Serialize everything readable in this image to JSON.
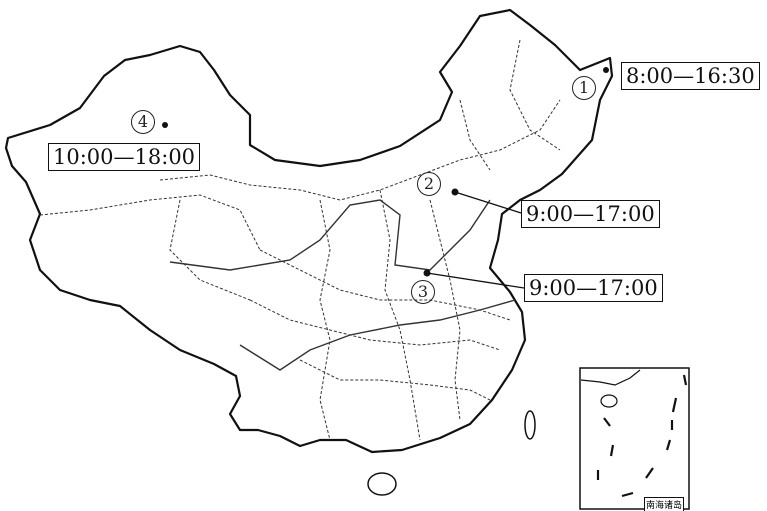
{
  "map": {
    "inset_label": "南海诸岛",
    "locations": [
      {
        "marker": "1",
        "time_range": "8:00—16:30"
      },
      {
        "marker": "2",
        "time_range": "9:00—17:00"
      },
      {
        "marker": "3",
        "time_range": "9:00—17:00"
      },
      {
        "marker": "4",
        "time_range": "10:00—18:00"
      }
    ],
    "colors": {
      "line": "#111111",
      "background": "#ffffff"
    }
  }
}
